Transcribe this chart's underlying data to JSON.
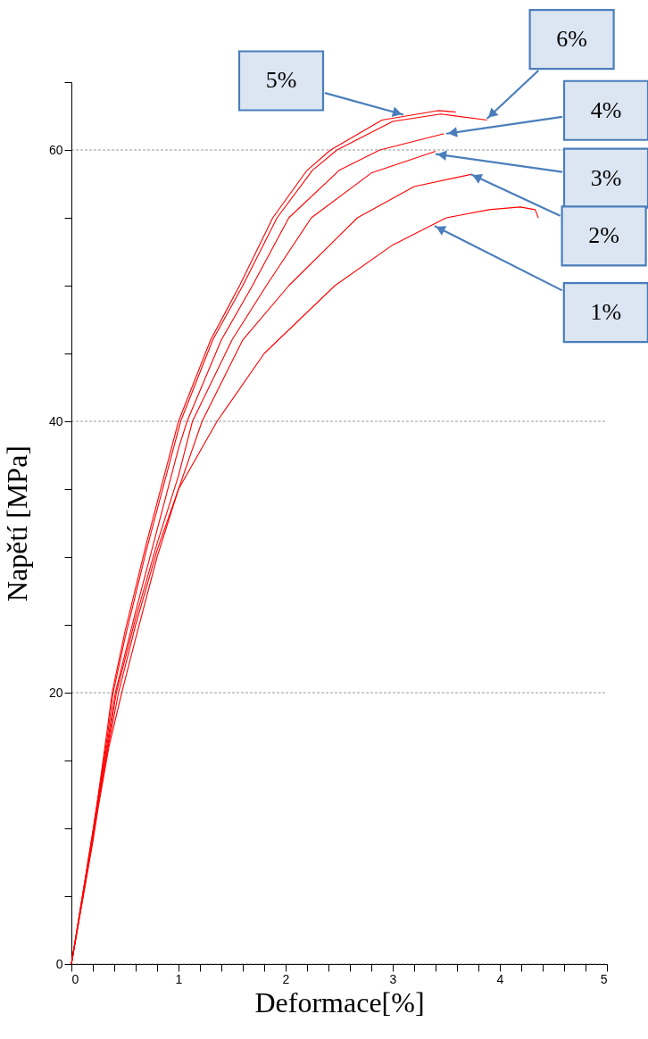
{
  "chart_data": {
    "type": "line",
    "xlabel": "Deformace[%]",
    "ylabel": "Napětí [MPa]",
    "xlim": [
      0,
      5
    ],
    "ylim": [
      0,
      65
    ],
    "xticks": [
      0,
      {
        "value": 0.2,
        "label": null
      },
      {
        "value": 0.4,
        "label": null
      },
      {
        "value": 0.6,
        "label": null
      },
      {
        "value": 0.8,
        "label": null
      },
      1,
      {
        "value": 1.2,
        "label": null
      },
      {
        "value": 1.4,
        "label": null
      },
      {
        "value": 1.6,
        "label": null
      },
      {
        "value": 1.8,
        "label": null
      },
      2,
      {
        "value": 2.2,
        "label": null
      },
      {
        "value": 2.4,
        "label": null
      },
      {
        "value": 2.6,
        "label": null
      },
      {
        "value": 2.8,
        "label": null
      },
      3,
      {
        "value": 3.2,
        "label": null
      },
      {
        "value": 3.4,
        "label": null
      },
      {
        "value": 3.6,
        "label": null
      },
      {
        "value": 3.8,
        "label": null
      },
      4,
      {
        "value": 4.2,
        "label": null
      },
      {
        "value": 4.4,
        "label": null
      },
      {
        "value": 4.6,
        "label": null
      },
      {
        "value": 4.8,
        "label": null
      },
      5
    ],
    "yticks": [
      0,
      {
        "value": 5,
        "label": null
      },
      {
        "value": 10,
        "label": null
      },
      {
        "value": 15,
        "label": null
      },
      20,
      {
        "value": 25,
        "label": null
      },
      {
        "value": 30,
        "label": null
      },
      {
        "value": 35,
        "label": null
      },
      40,
      {
        "value": 45,
        "label": null
      },
      {
        "value": 50,
        "label": null
      },
      {
        "value": 55,
        "label": null
      },
      60,
      {
        "value": 65,
        "label": null
      }
    ],
    "grid": "y",
    "marker": "none",
    "line_style": "solid",
    "series": [
      {
        "color": "#ff0000",
        "x": [
          0,
          0.1,
          0.2,
          0.25,
          0.35,
          0.47,
          0.6,
          0.8,
          1.0,
          1.36,
          1.8,
          2.46,
          3.0,
          3.5,
          3.9,
          4.19,
          4.33,
          4.36
        ],
        "values": [
          0,
          4.5,
          9,
          11.5,
          16,
          20,
          24,
          30,
          35,
          40,
          45,
          50,
          53,
          55,
          55.6,
          55.8,
          55.6,
          55.0
        ]
      },
      {
        "color": "#ff0000",
        "x": [
          0,
          0.1,
          0.2,
          0.25,
          0.35,
          0.44,
          0.6,
          0.8,
          1.0,
          1.22,
          1.6,
          2.03,
          2.67,
          3.2,
          3.73
        ],
        "values": [
          0,
          4.6,
          9.2,
          11.8,
          16.3,
          20,
          25,
          30.5,
          35,
          40,
          46,
          50,
          55,
          57.3,
          58.2
        ]
      },
      {
        "color": "#ff0000",
        "x": [
          0,
          0.1,
          0.2,
          0.25,
          0.35,
          0.42,
          0.6,
          0.8,
          1.0,
          1.13,
          1.5,
          1.82,
          2.24,
          2.8,
          3.4
        ],
        "values": [
          0,
          4.7,
          9.4,
          12,
          16.6,
          20,
          25.5,
          31,
          36,
          40,
          46,
          50,
          55,
          58.3,
          59.9
        ]
      },
      {
        "color": "#ff0000",
        "x": [
          0,
          0.1,
          0.2,
          0.25,
          0.35,
          0.41,
          0.6,
          0.8,
          1.0,
          1.08,
          1.4,
          1.69,
          2.03,
          2.5,
          2.88,
          3.48
        ],
        "values": [
          0,
          4.8,
          9.6,
          12.2,
          17,
          20,
          26,
          32,
          38,
          40,
          46,
          50,
          55,
          58.5,
          60,
          61.2
        ]
      },
      {
        "color": "#ff0000",
        "x": [
          0,
          0.1,
          0.2,
          0.25,
          0.33,
          0.38,
          0.5,
          0.7,
          1.0,
          1.3,
          1.57,
          1.88,
          2.2,
          2.42,
          2.9,
          3.42,
          3.59
        ],
        "values": [
          0,
          4.9,
          9.8,
          12.4,
          17,
          20,
          24.5,
          31,
          40,
          46,
          50,
          55,
          58.5,
          60,
          62.2,
          62.9,
          62.8
        ]
      },
      {
        "color": "#ff0000",
        "x": [
          0,
          0.1,
          0.2,
          0.25,
          0.34,
          0.39,
          0.5,
          0.7,
          1.02,
          1.32,
          1.6,
          1.92,
          2.25,
          2.48,
          3.0,
          3.45,
          3.88
        ],
        "values": [
          0,
          4.85,
          9.7,
          12.3,
          17,
          20,
          24,
          30.5,
          40,
          46,
          50,
          55,
          58.5,
          60,
          62.1,
          62.65,
          62.2
        ]
      }
    ],
    "annotations": [
      {
        "text": "5%",
        "x": 3.1,
        "y": 62.6
      },
      {
        "text": "6%",
        "x": 3.88,
        "y": 62.3
      },
      {
        "text": "4%",
        "x": 3.5,
        "y": 61.2
      },
      {
        "text": "3%",
        "x": 3.4,
        "y": 59.7
      },
      {
        "text": "2%",
        "x": 3.73,
        "y": 58.2
      },
      {
        "text": "1%",
        "x": 3.39,
        "y": 54.4
      }
    ]
  }
}
